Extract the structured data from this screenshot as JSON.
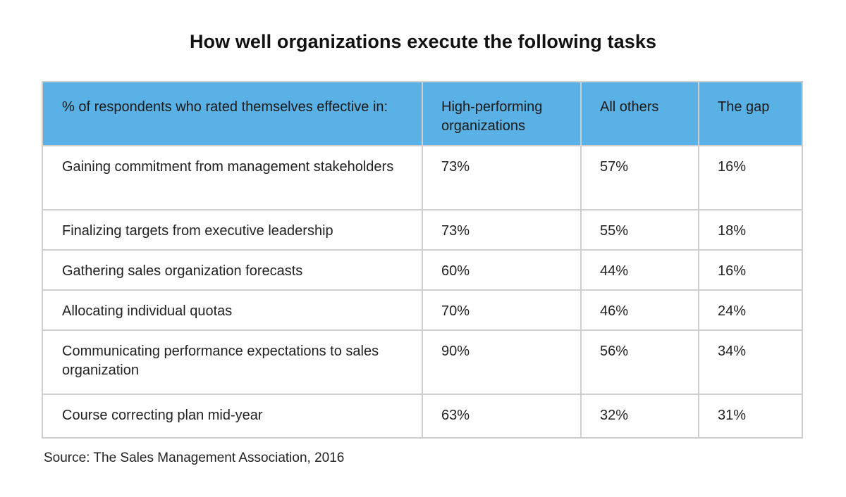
{
  "title": "How well organizations execute the following tasks",
  "table": {
    "headers": [
      "% of respondents who rated themselves effective in:",
      "High-performing organizations",
      "All others",
      "The gap"
    ],
    "rows": [
      [
        "Gaining commitment from management stakeholders",
        "73%",
        "57%",
        "16%"
      ],
      [
        "Finalizing targets from executive leadership",
        "73%",
        "55%",
        "18%"
      ],
      [
        "Gathering sales organization forecasts",
        "60%",
        "44%",
        "16%"
      ],
      [
        "Allocating individual quotas",
        "70%",
        "46%",
        "24%"
      ],
      [
        "Communicating performance expectations to sales organization",
        "90%",
        "56%",
        "34%"
      ],
      [
        "Course correcting plan mid-year",
        "63%",
        "32%",
        "31%"
      ]
    ]
  },
  "source": "Source: The Sales Management Association, 2016",
  "colors": {
    "header_bg": "#5ab1e5",
    "border": "#cfcfcf"
  }
}
